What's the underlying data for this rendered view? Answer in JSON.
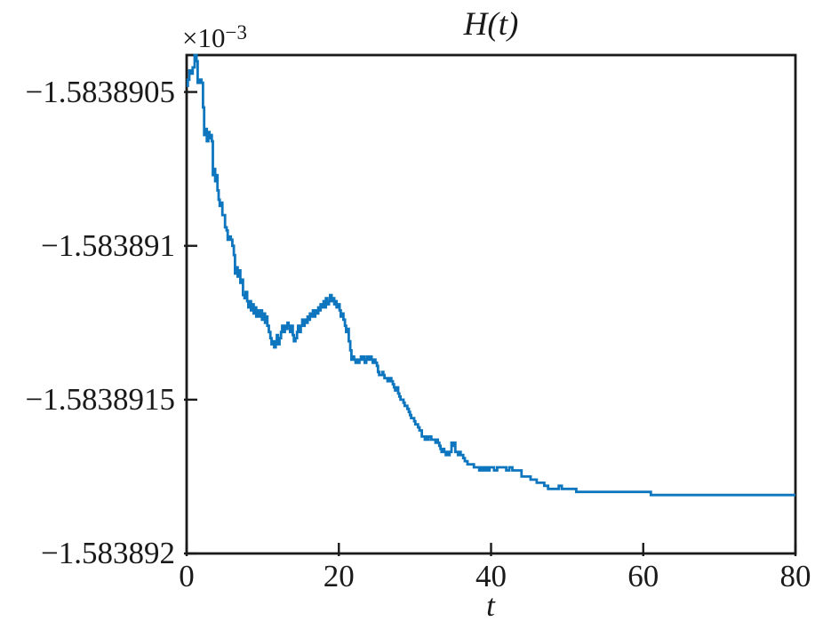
{
  "figure": {
    "title": "H(t)",
    "xlabel": "t",
    "offset_base": "×10",
    "offset_exponent": "−3"
  },
  "chart_data": {
    "type": "line",
    "title": "H(t)",
    "xlabel": "t",
    "ylabel": "",
    "y_scale_offset_text": "×10⁻³",
    "grid": false,
    "legend_visible": false,
    "step_interpolation": true,
    "line_color": "#0d76be",
    "axis_color": "#1a1a1a",
    "background_color": "#ffffff",
    "xlim": [
      0,
      80
    ],
    "ylim": [
      -1.583892,
      -1.58389038
    ],
    "x_ticks": {
      "values": [
        0,
        20,
        40,
        60,
        80
      ],
      "labels": [
        "0",
        "20",
        "40",
        "60",
        "80"
      ]
    },
    "y_ticks": {
      "values": [
        -1.5838905,
        -1.583891,
        -1.5838915,
        -1.583892
      ],
      "labels": [
        "−1.5838905",
        "−1.583891",
        "−1.5838915",
        "−1.583892"
      ]
    },
    "series": [
      {
        "name": "H(t)",
        "points": [
          [
            0,
            -1.58389048
          ],
          [
            0.15,
            -1.58389046
          ],
          [
            0.35,
            -1.58389043
          ],
          [
            0.6,
            -1.58389044
          ],
          [
            0.8,
            -1.58389042
          ],
          [
            1.05,
            -1.58389038
          ],
          [
            1.3,
            -1.5838904
          ],
          [
            1.45,
            -1.58389047
          ],
          [
            1.7,
            -1.58389046
          ],
          [
            1.95,
            -1.58389047
          ],
          [
            2.15,
            -1.58389055
          ],
          [
            2.3,
            -1.58389064
          ],
          [
            2.5,
            -1.58389062
          ],
          [
            2.65,
            -1.58389066
          ],
          [
            2.85,
            -1.58389063
          ],
          [
            3.0,
            -1.58389065
          ],
          [
            3.15,
            -1.58389064
          ],
          [
            3.3,
            -1.58389066
          ],
          [
            3.45,
            -1.58389077
          ],
          [
            3.6,
            -1.58389075
          ],
          [
            3.75,
            -1.58389079
          ],
          [
            3.9,
            -1.58389077
          ],
          [
            4.05,
            -1.58389082
          ],
          [
            4.2,
            -1.58389085
          ],
          [
            4.35,
            -1.58389087
          ],
          [
            4.55,
            -1.58389086
          ],
          [
            4.7,
            -1.5838909
          ],
          [
            4.9,
            -1.5838909
          ],
          [
            5.05,
            -1.58389094
          ],
          [
            5.25,
            -1.58389095
          ],
          [
            5.4,
            -1.58389098
          ],
          [
            5.6,
            -1.58389097
          ],
          [
            5.8,
            -1.58389098
          ],
          [
            6.0,
            -1.583891
          ],
          [
            6.2,
            -1.58389103
          ],
          [
            6.35,
            -1.58389109
          ],
          [
            6.55,
            -1.58389107
          ],
          [
            6.7,
            -1.5838911
          ],
          [
            6.9,
            -1.58389108
          ],
          [
            7.05,
            -1.58389112
          ],
          [
            7.25,
            -1.58389111
          ],
          [
            7.4,
            -1.58389116
          ],
          [
            7.6,
            -1.58389117
          ],
          [
            7.75,
            -1.58389115
          ],
          [
            7.95,
            -1.58389118
          ],
          [
            8.1,
            -1.5838912
          ],
          [
            8.3,
            -1.58389118
          ],
          [
            8.45,
            -1.58389121
          ],
          [
            8.65,
            -1.58389119
          ],
          [
            8.8,
            -1.58389122
          ],
          [
            9.0,
            -1.5838912
          ],
          [
            9.15,
            -1.58389123
          ],
          [
            9.35,
            -1.58389121
          ],
          [
            9.6,
            -1.58389123
          ],
          [
            9.75,
            -1.58389121
          ],
          [
            9.9,
            -1.58389124
          ],
          [
            10.1,
            -1.58389122
          ],
          [
            10.3,
            -1.58389125
          ],
          [
            10.45,
            -1.58389123
          ],
          [
            10.6,
            -1.58389126
          ],
          [
            10.8,
            -1.58389128
          ],
          [
            11.0,
            -1.5838913
          ],
          [
            11.15,
            -1.58389132
          ],
          [
            11.3,
            -1.58389131
          ],
          [
            11.5,
            -1.58389133
          ],
          [
            11.7,
            -1.58389131
          ],
          [
            11.85,
            -1.58389129
          ],
          [
            12.0,
            -1.58389132
          ],
          [
            12.2,
            -1.5838913
          ],
          [
            12.4,
            -1.58389128
          ],
          [
            12.55,
            -1.58389126
          ],
          [
            12.7,
            -1.58389128
          ],
          [
            12.9,
            -1.58389126
          ],
          [
            13.1,
            -1.58389127
          ],
          [
            13.25,
            -1.58389125
          ],
          [
            13.4,
            -1.58389126
          ],
          [
            13.6,
            -1.58389128
          ],
          [
            13.8,
            -1.58389126
          ],
          [
            13.95,
            -1.58389129
          ],
          [
            14.1,
            -1.58389131
          ],
          [
            14.3,
            -1.5838913
          ],
          [
            14.5,
            -1.58389128
          ],
          [
            14.65,
            -1.58389126
          ],
          [
            14.8,
            -1.58389128
          ],
          [
            15.0,
            -1.58389126
          ],
          [
            15.2,
            -1.58389124
          ],
          [
            15.35,
            -1.58389126
          ],
          [
            15.5,
            -1.58389124
          ],
          [
            15.7,
            -1.58389125
          ],
          [
            15.9,
            -1.58389123
          ],
          [
            16.05,
            -1.58389124
          ],
          [
            16.2,
            -1.58389122
          ],
          [
            16.4,
            -1.58389123
          ],
          [
            16.6,
            -1.58389121
          ],
          [
            16.75,
            -1.58389123
          ],
          [
            16.9,
            -1.58389121
          ],
          [
            17.1,
            -1.58389122
          ],
          [
            17.3,
            -1.5838912
          ],
          [
            17.45,
            -1.58389121
          ],
          [
            17.6,
            -1.58389119
          ],
          [
            17.8,
            -1.5838912
          ],
          [
            18.0,
            -1.58389118
          ],
          [
            18.15,
            -1.5838912
          ],
          [
            18.3,
            -1.58389117
          ],
          [
            18.5,
            -1.58389119
          ],
          [
            18.7,
            -1.58389118
          ],
          [
            18.85,
            -1.58389116
          ],
          [
            19.05,
            -1.58389118
          ],
          [
            19.2,
            -1.58389117
          ],
          [
            19.4,
            -1.58389119
          ],
          [
            19.55,
            -1.58389118
          ],
          [
            19.7,
            -1.5838912
          ],
          [
            19.9,
            -1.58389119
          ],
          [
            20.1,
            -1.58389121
          ],
          [
            20.25,
            -1.58389123
          ],
          [
            20.4,
            -1.58389122
          ],
          [
            20.6,
            -1.58389124
          ],
          [
            20.8,
            -1.58389126
          ],
          [
            20.95,
            -1.58389128
          ],
          [
            21.1,
            -1.58389127
          ],
          [
            21.3,
            -1.58389131
          ],
          [
            21.5,
            -1.58389134
          ],
          [
            21.65,
            -1.58389137
          ],
          [
            21.8,
            -1.58389136
          ],
          [
            22.0,
            -1.58389137
          ],
          [
            22.2,
            -1.58389138
          ],
          [
            22.35,
            -1.58389137
          ],
          [
            22.5,
            -1.58389138
          ],
          [
            22.7,
            -1.58389137
          ],
          [
            22.9,
            -1.58389136
          ],
          [
            23.05,
            -1.58389137
          ],
          [
            23.2,
            -1.58389136
          ],
          [
            23.4,
            -1.58389138
          ],
          [
            23.6,
            -1.58389137
          ],
          [
            23.75,
            -1.58389136
          ],
          [
            23.9,
            -1.58389137
          ],
          [
            24.1,
            -1.58389136
          ],
          [
            24.3,
            -1.58389137
          ],
          [
            24.45,
            -1.58389138
          ],
          [
            24.6,
            -1.58389137
          ],
          [
            24.8,
            -1.58389138
          ],
          [
            25.0,
            -1.58389139
          ],
          [
            25.15,
            -1.58389141
          ],
          [
            25.3,
            -1.58389142
          ],
          [
            25.5,
            -1.58389142
          ],
          [
            25.7,
            -1.58389141
          ],
          [
            25.85,
            -1.58389142
          ],
          [
            26.0,
            -1.58389143
          ],
          [
            26.2,
            -1.58389143
          ],
          [
            26.4,
            -1.58389144
          ],
          [
            26.55,
            -1.58389144
          ],
          [
            26.7,
            -1.58389143
          ],
          [
            26.9,
            -1.58389144
          ],
          [
            27.1,
            -1.58389145
          ],
          [
            27.25,
            -1.58389146
          ],
          [
            27.4,
            -1.58389147
          ],
          [
            27.6,
            -1.58389146
          ],
          [
            27.8,
            -1.58389148
          ],
          [
            27.95,
            -1.58389149
          ],
          [
            28.1,
            -1.5838915
          ],
          [
            28.3,
            -1.5838915
          ],
          [
            28.5,
            -1.58389151
          ],
          [
            28.65,
            -1.58389152
          ],
          [
            28.8,
            -1.58389152
          ],
          [
            29.0,
            -1.58389153
          ],
          [
            29.2,
            -1.58389154
          ],
          [
            29.35,
            -1.58389155
          ],
          [
            29.5,
            -1.58389156
          ],
          [
            29.7,
            -1.58389156
          ],
          [
            29.9,
            -1.58389157
          ],
          [
            30.05,
            -1.58389158
          ],
          [
            30.2,
            -1.58389158
          ],
          [
            30.4,
            -1.58389159
          ],
          [
            30.6,
            -1.5838916
          ],
          [
            30.75,
            -1.5838916
          ],
          [
            30.9,
            -1.58389162
          ],
          [
            31.1,
            -1.58389162
          ],
          [
            31.3,
            -1.58389163
          ],
          [
            31.45,
            -1.58389162
          ],
          [
            31.6,
            -1.58389163
          ],
          [
            31.8,
            -1.58389162
          ],
          [
            32.0,
            -1.58389162
          ],
          [
            32.15,
            -1.58389163
          ],
          [
            32.3,
            -1.58389163
          ],
          [
            32.5,
            -1.58389163
          ],
          [
            32.7,
            -1.58389164
          ],
          [
            32.85,
            -1.58389163
          ],
          [
            33.0,
            -1.58389164
          ],
          [
            33.2,
            -1.58389165
          ],
          [
            33.35,
            -1.58389166
          ],
          [
            33.5,
            -1.58389167
          ],
          [
            33.7,
            -1.58389166
          ],
          [
            33.85,
            -1.58389167
          ],
          [
            34.05,
            -1.58389168
          ],
          [
            34.2,
            -1.58389167
          ],
          [
            34.4,
            -1.58389168
          ],
          [
            34.55,
            -1.58389167
          ],
          [
            34.8,
            -1.58389164
          ],
          [
            34.95,
            -1.58389165
          ],
          [
            35.1,
            -1.58389164
          ],
          [
            35.3,
            -1.58389167
          ],
          [
            35.5,
            -1.58389167
          ],
          [
            35.65,
            -1.58389168
          ],
          [
            35.85,
            -1.58389167
          ],
          [
            36.0,
            -1.58389168
          ],
          [
            36.2,
            -1.58389168
          ],
          [
            36.35,
            -1.58389169
          ],
          [
            36.55,
            -1.5838917
          ],
          [
            36.7,
            -1.5838917
          ],
          [
            36.9,
            -1.58389171
          ],
          [
            37.05,
            -1.58389171
          ],
          [
            37.25,
            -1.58389171
          ],
          [
            37.4,
            -1.58389171
          ],
          [
            37.6,
            -1.58389171
          ],
          [
            37.75,
            -1.58389172
          ],
          [
            37.95,
            -1.58389172
          ],
          [
            38.1,
            -1.58389172
          ],
          [
            38.3,
            -1.58389172
          ],
          [
            38.45,
            -1.58389173
          ],
          [
            38.65,
            -1.58389172
          ],
          [
            38.8,
            -1.58389173
          ],
          [
            39.0,
            -1.58389172
          ],
          [
            39.15,
            -1.58389173
          ],
          [
            39.4,
            -1.58389172
          ],
          [
            39.6,
            -1.58389173
          ],
          [
            39.8,
            -1.58389172
          ],
          [
            40.0,
            -1.58389172
          ],
          [
            40.4,
            -1.58389173
          ],
          [
            40.8,
            -1.58389172
          ],
          [
            41.2,
            -1.58389172
          ],
          [
            41.6,
            -1.58389172
          ],
          [
            42.0,
            -1.58389173
          ],
          [
            42.4,
            -1.58389172
          ],
          [
            42.8,
            -1.58389173
          ],
          [
            43.2,
            -1.58389173
          ],
          [
            43.6,
            -1.58389173
          ],
          [
            44.0,
            -1.58389175
          ],
          [
            44.4,
            -1.58389175
          ],
          [
            44.8,
            -1.58389175
          ],
          [
            45.2,
            -1.58389176
          ],
          [
            45.6,
            -1.58389176
          ],
          [
            46.0,
            -1.58389177
          ],
          [
            46.5,
            -1.58389177
          ],
          [
            47.0,
            -1.58389178
          ],
          [
            47.5,
            -1.58389179
          ],
          [
            48.0,
            -1.58389179
          ],
          [
            48.5,
            -1.58389179
          ],
          [
            48.9,
            -1.58389178
          ],
          [
            49.3,
            -1.58389179
          ],
          [
            49.7,
            -1.58389179
          ],
          [
            50.2,
            -1.58389179
          ],
          [
            50.7,
            -1.58389179
          ],
          [
            51.2,
            -1.5838918
          ],
          [
            51.8,
            -1.5838918
          ],
          [
            52.5,
            -1.5838918
          ],
          [
            53.2,
            -1.5838918
          ],
          [
            54.0,
            -1.5838918
          ],
          [
            55.0,
            -1.5838918
          ],
          [
            56.0,
            -1.5838918
          ],
          [
            57.0,
            -1.5838918
          ],
          [
            58.0,
            -1.5838918
          ],
          [
            59.0,
            -1.5838918
          ],
          [
            60.0,
            -1.5838918
          ],
          [
            61.0,
            -1.58389181
          ],
          [
            62.5,
            -1.58389181
          ],
          [
            64.0,
            -1.58389181
          ],
          [
            66.0,
            -1.58389181
          ],
          [
            68.0,
            -1.58389181
          ],
          [
            70.0,
            -1.58389181
          ],
          [
            72.0,
            -1.58389181
          ],
          [
            74.0,
            -1.58389181
          ],
          [
            76.0,
            -1.58389181
          ],
          [
            78.0,
            -1.58389181
          ],
          [
            80.0,
            -1.58389181
          ]
        ]
      }
    ]
  }
}
